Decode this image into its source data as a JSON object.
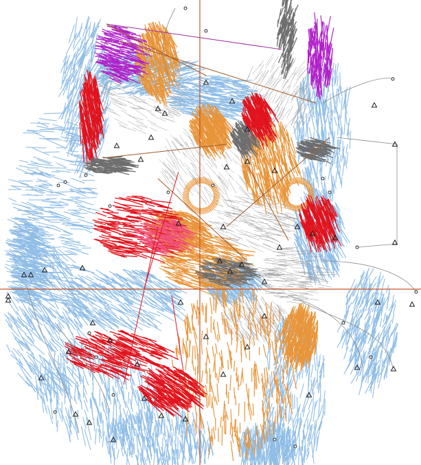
{
  "canvas": {
    "background": "#ffffff",
    "description_name": "embroidery-stitch-editor-view"
  },
  "colors": {
    "blue_stitch": "#8fbde6",
    "orange_stitch": "#e8953a",
    "red_stitch": "#e0141e",
    "pink_stitch": "#f0507a",
    "purple_stitch": "#b020c8",
    "gray_stitch": "#6e6e6e",
    "white_stitch_outline": "#9a9a9a",
    "guide_line": "#c0562a",
    "node_marker": "#1a1a1a",
    "connector_purple": "#a030a0",
    "connector_brown": "#a05a2a"
  },
  "icons": {
    "node": "triangle-node-icon",
    "dot": "circle-node-icon"
  }
}
